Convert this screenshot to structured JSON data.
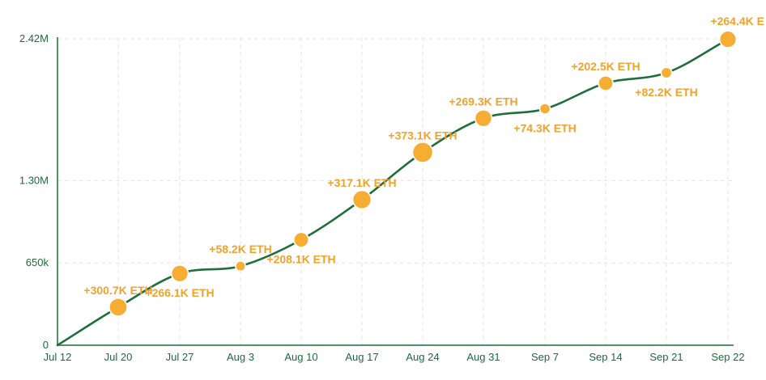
{
  "chart_data": {
    "type": "line",
    "title": "",
    "xlabel": "",
    "ylabel": "",
    "ylim": [
      0,
      2420000
    ],
    "x_ticks": [
      "Jul 12",
      "Jul 20",
      "Jul 27",
      "Aug 3",
      "Aug 10",
      "Aug 17",
      "Aug 24",
      "Aug 31",
      "Sep 7",
      "Sep 14",
      "Sep 21",
      "Sep 22"
    ],
    "y_ticks": [
      {
        "value": 0,
        "label": "0"
      },
      {
        "value": 650000,
        "label": "650k"
      },
      {
        "value": 1300000,
        "label": "1.30M"
      },
      {
        "value": 2420000,
        "label": "2.42M"
      }
    ],
    "grid": true,
    "colors": {
      "line": "#1f6e3c",
      "bubble": "#f5ad33",
      "label": "#f0a22c",
      "axis": "#1d6b3a"
    },
    "series": [
      {
        "points": [
          {
            "x": "Jul 12",
            "y": 0,
            "label": ""
          },
          {
            "x": "Jul 20",
            "y": 300700,
            "label": "+300.7K ETH"
          },
          {
            "x": "Jul 27",
            "y": 566800,
            "label": "+266.1K ETH"
          },
          {
            "x": "Aug 3",
            "y": 625000,
            "label": "+58.2K ETH"
          },
          {
            "x": "Aug 10",
            "y": 833100,
            "label": "+208.1K ETH"
          },
          {
            "x": "Aug 17",
            "y": 1150200,
            "label": "+317.1K ETH"
          },
          {
            "x": "Aug 24",
            "y": 1523300,
            "label": "+373.1K ETH"
          },
          {
            "x": "Aug 31",
            "y": 1792600,
            "label": "+269.3K ETH"
          },
          {
            "x": "Sep 7",
            "y": 1866900,
            "label": "+74.3K ETH"
          },
          {
            "x": "Sep 14",
            "y": 2069400,
            "label": "+202.5K ETH"
          },
          {
            "x": "Sep 21",
            "y": 2151600,
            "label": "+82.2K ETH"
          },
          {
            "x": "Sep 22",
            "y": 2416000,
            "label": "+264.4K E"
          }
        ]
      }
    ]
  }
}
